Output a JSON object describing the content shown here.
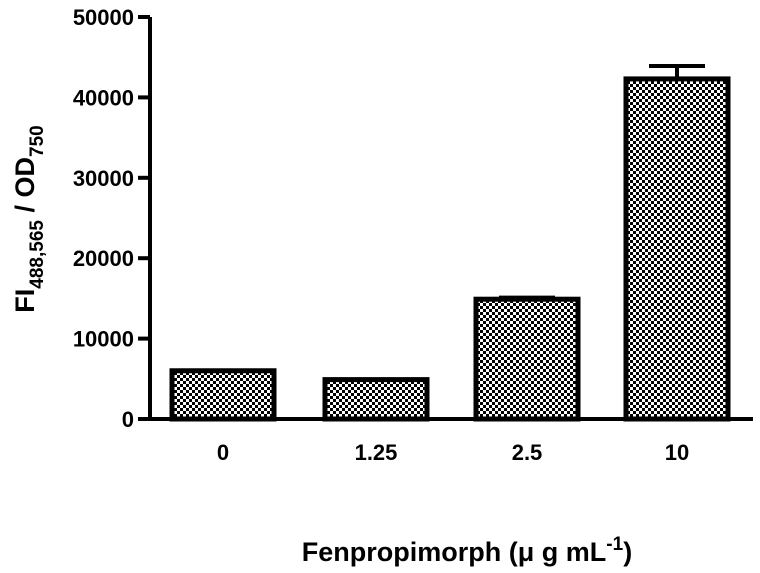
{
  "chart_data": {
    "type": "bar",
    "categories": [
      "0",
      "1.25",
      "2.5",
      "10"
    ],
    "values": [
      6000,
      4900,
      14900,
      42300
    ],
    "errors": [
      0,
      0,
      200,
      1600
    ],
    "ylim": [
      0,
      50000
    ],
    "yticks": [
      "0",
      "10000",
      "20000",
      "30000",
      "40000",
      "50000"
    ],
    "ylabel": {
      "main": "FI",
      "sub1": "488,565",
      "mid": " / OD",
      "sub2": "750"
    },
    "xlabel": {
      "main": "Fenpropimorph  (μ g mL",
      "sup": "-1",
      "tail": ")"
    },
    "bar_pattern": "checkerboard",
    "colors": {
      "pattern_dark": "#000000",
      "pattern_light": "#ffffff",
      "bar_edge": "#000000",
      "axis": "#000000"
    },
    "grid": false,
    "legend": "none"
  }
}
